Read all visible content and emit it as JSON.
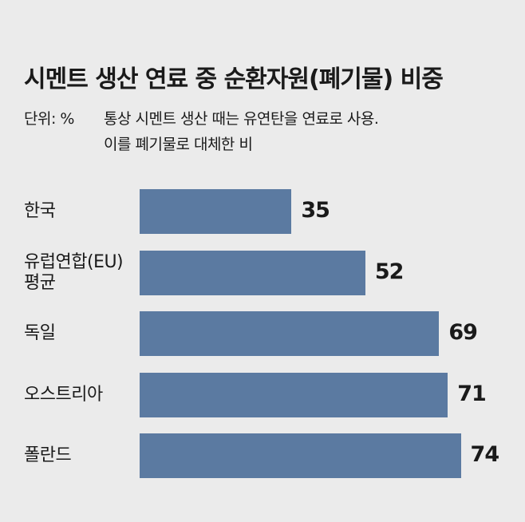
{
  "chart_data": {
    "type": "bar",
    "orientation": "horizontal",
    "title": "시멘트 생산 연료 중 순환자원(폐기물) 비중",
    "unit": "단위: %",
    "note": [
      "통상 시멘트 생산 때는 유연탄을 연료로 사용.",
      "이를 폐기물로 대체한 비"
    ],
    "categories": [
      "한국",
      "유럽연합(EU)\n평균",
      "독일",
      "오스트리아",
      "폴란드"
    ],
    "values": [
      35,
      52,
      69,
      71,
      74
    ],
    "color": "#5b7aa1"
  }
}
